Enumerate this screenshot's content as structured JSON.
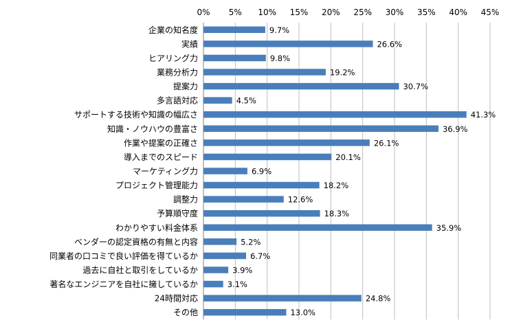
{
  "chart_data": {
    "type": "bar",
    "orientation": "horizontal",
    "categories": [
      "企業の知名度",
      "実績",
      "ヒアリング力",
      "業務分析力",
      "提案力",
      "多言語対応",
      "サポートする技術や知識の幅広さ",
      "知識・ノウハウの豊富さ",
      "作業や提案の正確さ",
      "導入までのスピード",
      "マーケティング力",
      "プロジェクト管理能力",
      "調整力",
      "予算順守度",
      "わかりやすい料金体系",
      "ベンダーの認定資格の有無と内容",
      "同業者の口コミで良い評価を得ているか",
      "過去に自社と取引をしているか",
      "著名なエンジニアを自社に擁しているか",
      "24時間対応",
      "その他"
    ],
    "values": [
      9.7,
      26.6,
      9.8,
      19.2,
      30.7,
      4.5,
      41.3,
      36.9,
      26.1,
      20.1,
      6.9,
      18.2,
      12.6,
      18.3,
      35.9,
      5.2,
      6.7,
      3.9,
      3.1,
      24.8,
      13.0
    ],
    "data_labels": [
      "9.7%",
      "26.6%",
      "9.8%",
      "19.2%",
      "30.7%",
      "4.5%",
      "41.3%",
      "36.9%",
      "26.1%",
      "20.1%",
      "6.9%",
      "18.2%",
      "12.6%",
      "18.3%",
      "35.9%",
      "5.2%",
      "6.7%",
      "3.9%",
      "3.1%",
      "24.8%",
      "13.0%"
    ],
    "x_ticks": [
      "0%",
      "5%",
      "10%",
      "15%",
      "20%",
      "25%",
      "30%",
      "35%",
      "40%",
      "45%"
    ],
    "xlim": [
      0,
      45
    ],
    "x_axis_position": "top",
    "grid": true,
    "legend": "none",
    "bar_color": "#4a7ebb"
  }
}
